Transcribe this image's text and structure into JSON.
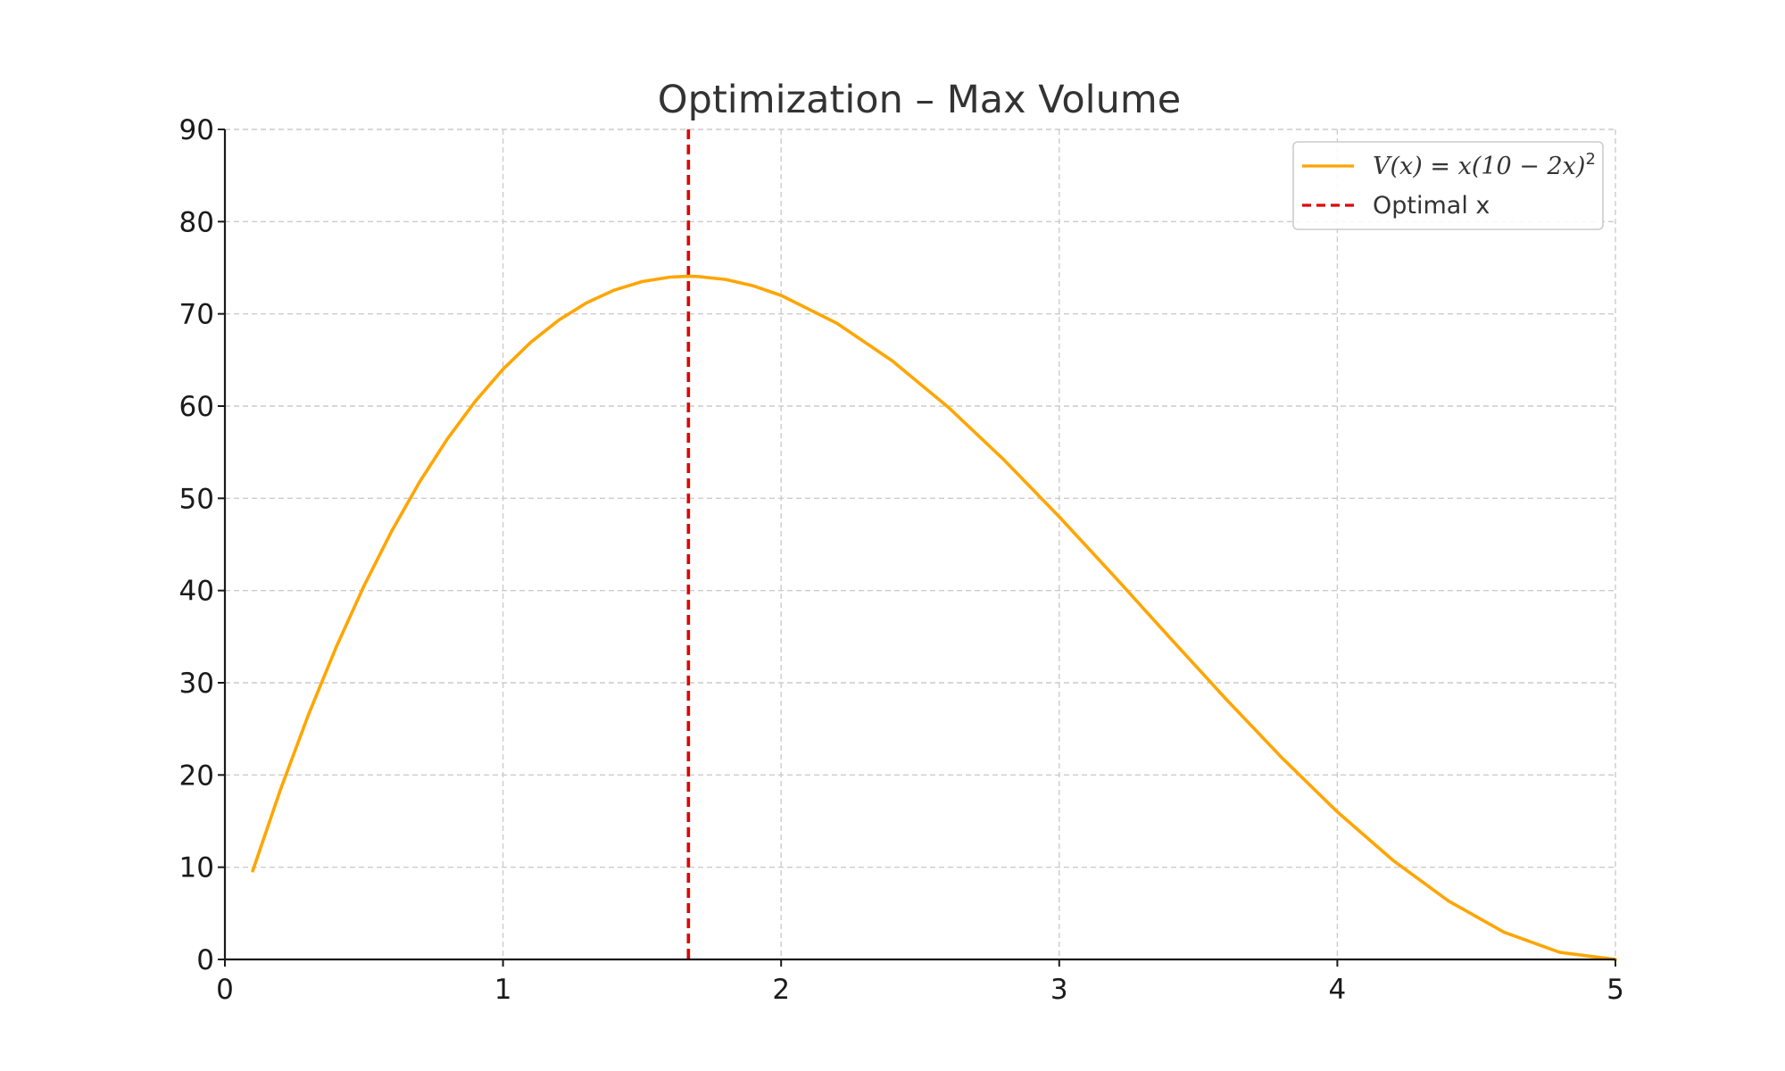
{
  "chart_data": {
    "type": "line",
    "title": "Optimization – Max Volume",
    "xlabel": "",
    "ylabel": "",
    "xlim": [
      0,
      5
    ],
    "ylim": [
      0,
      90
    ],
    "x_ticks": [
      0,
      1,
      2,
      3,
      4,
      5
    ],
    "x_tick_labels": [
      "0",
      "1",
      "2",
      "3",
      "4",
      "5"
    ],
    "y_ticks": [
      0,
      10,
      20,
      30,
      40,
      50,
      60,
      70,
      80,
      90
    ],
    "y_tick_labels": [
      "0",
      "10",
      "20",
      "30",
      "40",
      "50",
      "60",
      "70",
      "80",
      "90"
    ],
    "grid": true,
    "legend_position": "top-right",
    "series": [
      {
        "name": "V(x) = x(10 − 2x)²",
        "color": "#FFA500",
        "style": "solid",
        "x": [
          0.1,
          0.2,
          0.3,
          0.4,
          0.5,
          0.6,
          0.7,
          0.8,
          0.9,
          1.0,
          1.1,
          1.2,
          1.3,
          1.4,
          1.5,
          1.6,
          1.6667,
          1.7,
          1.8,
          1.9,
          2.0,
          2.2,
          2.4,
          2.6,
          2.8,
          3.0,
          3.2,
          3.4,
          3.6,
          3.8,
          4.0,
          4.2,
          4.4,
          4.6,
          4.8,
          5.0
        ],
        "y": [
          9.604,
          18.432,
          26.508,
          33.856,
          40.5,
          46.464,
          51.772,
          56.448,
          60.516,
          64.0,
          66.924,
          69.312,
          71.188,
          72.576,
          73.5,
          73.984,
          74.074,
          74.052,
          73.728,
          73.036,
          72.0,
          68.992,
          64.896,
          59.904,
          54.208,
          48.0,
          41.472,
          34.816,
          28.224,
          21.888,
          16.0,
          10.752,
          6.336,
          2.944,
          0.768,
          0.0
        ]
      }
    ],
    "reference_lines": [
      {
        "name": "Optimal x",
        "orientation": "vertical",
        "x": 1.6667,
        "color": "#E00000",
        "style": "dashed"
      }
    ],
    "legend": {
      "curve_label_parts": {
        "lhs": "V(x)",
        "eq": " = ",
        "rhs": "x(10 − 2x)",
        "sup": "2"
      },
      "optimal_label": "Optimal x"
    }
  }
}
